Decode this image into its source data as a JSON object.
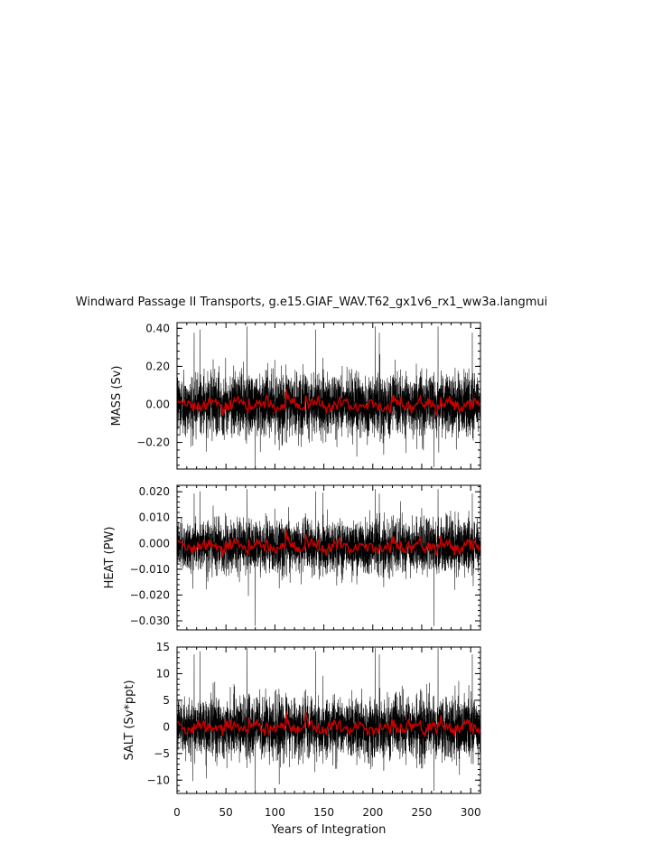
{
  "title": "Windward Passage II Transports, g.e15.GIAF_WAV.T62_gx1v6_rx1_ww3a.langmui",
  "xlabel": "Years of Integration",
  "x_ticks": [
    "0",
    "50",
    "100",
    "150",
    "200",
    "250",
    "300"
  ],
  "colors": {
    "raw": "#000000",
    "smoothed": "#cc0000"
  },
  "chart_data": [
    {
      "type": "line",
      "ylabel": "MASS (Sv)",
      "xlim": [
        0,
        310
      ],
      "ylim": [
        -0.34,
        0.43
      ],
      "y_ticks": [
        0.4,
        0.2,
        0.0,
        -0.2
      ],
      "y_tick_labels": [
        "0.40",
        "0.20",
        "0.00",
        "−0.20"
      ],
      "series": [
        {
          "values": {
            "mean": 0.0,
            "std": 0.085,
            "peak_max": 0.41,
            "peak_min": -0.33
          }
        },
        {
          "values": {
            "mean": 0.0,
            "amplitude": 0.04
          }
        }
      ]
    },
    {
      "type": "line",
      "ylabel": "HEAT (PW)",
      "xlim": [
        0,
        310
      ],
      "ylim": [
        -0.0335,
        0.0225
      ],
      "y_ticks": [
        0.02,
        0.01,
        0.0,
        -0.01,
        -0.02,
        -0.03
      ],
      "y_tick_labels": [
        "0.020",
        "0.010",
        "0.000",
        "−0.010",
        "−0.020",
        "−0.030"
      ],
      "series": [
        {
          "values": {
            "mean": -0.001,
            "std": 0.0055,
            "peak_max": 0.021,
            "peak_min": -0.032
          }
        },
        {
          "values": {
            "mean": -0.001,
            "amplitude": 0.003
          }
        }
      ]
    },
    {
      "type": "line",
      "ylabel": "SALT (Sv*ppt)",
      "xlim": [
        0,
        310
      ],
      "ylim": [
        -12.5,
        15.0
      ],
      "y_ticks": [
        15,
        10,
        5,
        0,
        -5,
        -10
      ],
      "y_tick_labels": [
        "15",
        "10",
        "5",
        "0",
        "−5",
        "−10"
      ],
      "series": [
        {
          "values": {
            "mean": 0.0,
            "std": 3.0,
            "peak_max": 14.8,
            "peak_min": -12.0
          }
        },
        {
          "values": {
            "mean": 0.0,
            "amplitude": 1.5
          }
        }
      ]
    }
  ]
}
